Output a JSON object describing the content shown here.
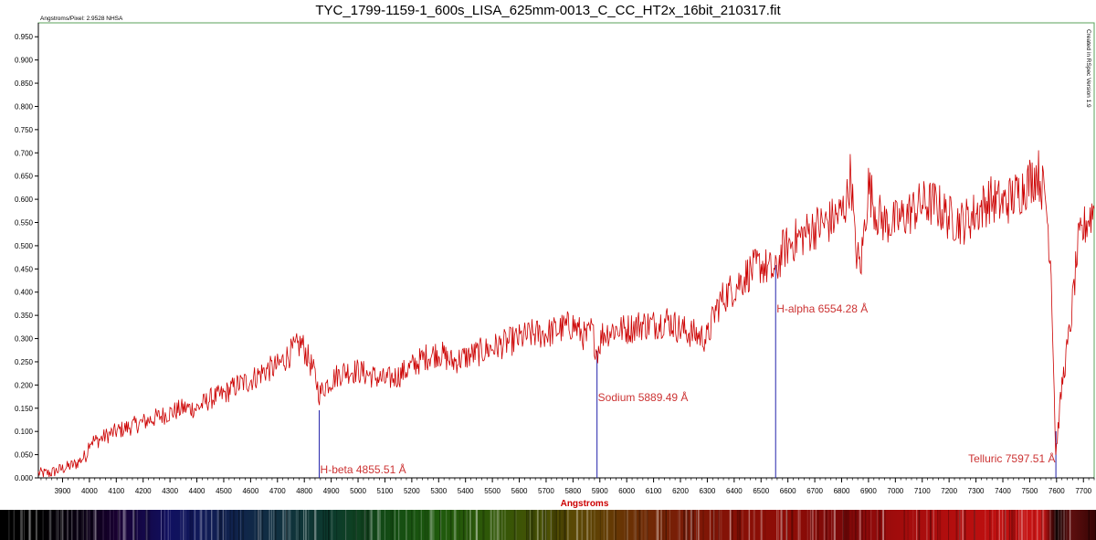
{
  "title": "TYC_1799-1159-1_600s_LISA_625mm-0013_C_CC_HT2x_16bit_210317.fit",
  "dispersion_label": "Angstroms/Pixel: 2.9528 NHSA",
  "side_label": "Created in RSpec Version 1.9",
  "colors": {
    "series": "#cc0000",
    "axis_label": "#cc0000",
    "annotation_text": "#cc3333",
    "annotation_line": "#2222aa",
    "frame": "#5aa05a"
  },
  "chart_data": {
    "type": "line",
    "title": "TYC_1799-1159-1_600s_LISA_625mm-0013_C_CC_HT2x_16bit_210317.fit",
    "xlabel": "Angstroms",
    "ylabel": "",
    "xlim": [
      3810,
      7740
    ],
    "ylim": [
      0,
      0.98
    ],
    "grid": false,
    "x_ticks": [
      3900,
      4000,
      4100,
      4200,
      4300,
      4400,
      4500,
      4600,
      4700,
      4800,
      4900,
      5000,
      5100,
      5200,
      5300,
      5400,
      5500,
      5600,
      5700,
      5800,
      5900,
      6000,
      6100,
      6200,
      6300,
      6400,
      6500,
      6600,
      6700,
      6800,
      6900,
      7000,
      7100,
      7200,
      7300,
      7400,
      7500,
      7600,
      7700
    ],
    "y_ticks": [
      "0.000",
      "0.050",
      "0.100",
      "0.150",
      "0.200",
      "0.250",
      "0.300",
      "0.350",
      "0.400",
      "0.450",
      "0.500",
      "0.550",
      "0.600",
      "0.650",
      "0.700",
      "0.750",
      "0.800",
      "0.850",
      "0.900",
      "0.950"
    ],
    "series": [
      {
        "x": [
          3810,
          3850,
          3900,
          3950,
          3990,
          4000,
          4030,
          4060,
          4100,
          4150,
          4200,
          4250,
          4300,
          4350,
          4400,
          4450,
          4500,
          4550,
          4600,
          4650,
          4700,
          4750,
          4790,
          4820,
          4840,
          4856,
          4880,
          4920,
          4950,
          5000,
          5050,
          5100,
          5150,
          5200,
          5250,
          5300,
          5350,
          5400,
          5450,
          5500,
          5550,
          5600,
          5650,
          5700,
          5750,
          5800,
          5850,
          5870,
          5889,
          5910,
          5950,
          6000,
          6050,
          6100,
          6150,
          6200,
          6250,
          6300,
          6330,
          6360,
          6400,
          6450,
          6500,
          6554,
          6580,
          6620,
          6650,
          6700,
          6750,
          6800,
          6820,
          6835,
          6850,
          6870,
          6900,
          6930,
          6960,
          7000,
          7050,
          7100,
          7150,
          7200,
          7250,
          7300,
          7350,
          7400,
          7450,
          7500,
          7530,
          7560,
          7580,
          7597,
          7620,
          7650,
          7680,
          7710,
          7740
        ],
        "y": [
          0.01,
          0.01,
          0.02,
          0.03,
          0.05,
          0.08,
          0.08,
          0.09,
          0.1,
          0.11,
          0.12,
          0.13,
          0.14,
          0.15,
          0.15,
          0.17,
          0.18,
          0.2,
          0.21,
          0.23,
          0.24,
          0.27,
          0.29,
          0.25,
          0.22,
          0.18,
          0.2,
          0.22,
          0.23,
          0.23,
          0.22,
          0.21,
          0.22,
          0.24,
          0.26,
          0.27,
          0.25,
          0.26,
          0.27,
          0.28,
          0.29,
          0.3,
          0.31,
          0.31,
          0.32,
          0.33,
          0.3,
          0.32,
          0.27,
          0.31,
          0.32,
          0.32,
          0.33,
          0.33,
          0.34,
          0.32,
          0.31,
          0.3,
          0.36,
          0.39,
          0.41,
          0.44,
          0.46,
          0.44,
          0.49,
          0.51,
          0.52,
          0.54,
          0.55,
          0.57,
          0.6,
          0.66,
          0.5,
          0.45,
          0.63,
          0.57,
          0.55,
          0.55,
          0.57,
          0.59,
          0.59,
          0.56,
          0.55,
          0.57,
          0.6,
          0.59,
          0.61,
          0.64,
          0.66,
          0.6,
          0.45,
          0.05,
          0.2,
          0.32,
          0.5,
          0.55,
          0.58
        ]
      }
    ],
    "annotations": [
      {
        "x": 4855.51,
        "label": "H-beta 4855.51 Å"
      },
      {
        "x": 5889.49,
        "label": "Sodium 5889.49 Å"
      },
      {
        "x": 6554.28,
        "label": "H-alpha 6554.28 Å"
      },
      {
        "x": 7597.51,
        "label": "Telluric 7597.51 Å"
      }
    ]
  },
  "spectrum_strip": {
    "x": [
      3810,
      3950,
      4100,
      4300,
      4500,
      4700,
      4900,
      5100,
      5300,
      5500,
      5700,
      5800,
      5900,
      6000,
      6200,
      6400,
      6600,
      6800,
      7000,
      7200,
      7400,
      7550,
      7600,
      7650,
      7740
    ],
    "colors": [
      "#000000",
      "#080010",
      "#180030",
      "#101060",
      "#102050",
      "#103040",
      "#0c3a2c",
      "#124a14",
      "#1e5a0c",
      "#305808",
      "#4a5004",
      "#5a4804",
      "#604004",
      "#6a3204",
      "#7a1c06",
      "#861006",
      "#900c06",
      "#7a0808",
      "#a00c0c",
      "#b20e0e",
      "#c01010",
      "#c81414",
      "#100000",
      "#601010",
      "#380404"
    ]
  }
}
